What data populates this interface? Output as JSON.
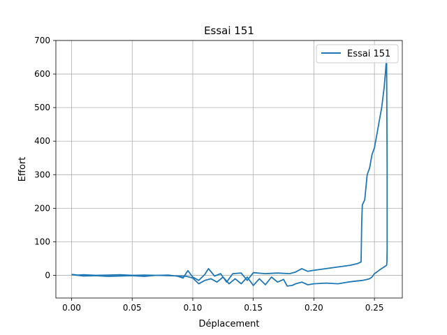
{
  "chart_data": {
    "type": "line",
    "title": "Essai 151",
    "xlabel": "Déplacement",
    "ylabel": "Effort",
    "xlim": [
      -0.013,
      0.273
    ],
    "ylim": [
      -67.5,
      700
    ],
    "xticks": [
      0.0,
      0.05,
      0.1,
      0.15,
      0.2,
      0.25
    ],
    "xtick_labels": [
      "0.00",
      "0.05",
      "0.10",
      "0.15",
      "0.20",
      "0.25"
    ],
    "yticks": [
      0,
      100,
      200,
      300,
      400,
      500,
      600,
      700
    ],
    "ytick_labels": [
      "0",
      "100",
      "200",
      "300",
      "400",
      "500",
      "600",
      "700"
    ],
    "grid": true,
    "legend_position": "top-right",
    "series": [
      {
        "name": "Essai 151",
        "color": "#1f77b4",
        "x": [
          0.0,
          0.005,
          0.01,
          0.02,
          0.03,
          0.04,
          0.05,
          0.06,
          0.07,
          0.08,
          0.088,
          0.092,
          0.096,
          0.1,
          0.105,
          0.11,
          0.113,
          0.118,
          0.123,
          0.128,
          0.133,
          0.14,
          0.145,
          0.15,
          0.16,
          0.17,
          0.18,
          0.185,
          0.19,
          0.195,
          0.2,
          0.21,
          0.22,
          0.23,
          0.236,
          0.239,
          0.2395,
          0.24,
          0.242,
          0.244,
          0.246,
          0.248,
          0.25,
          0.252,
          0.254,
          0.256,
          0.258,
          0.259,
          0.2595,
          0.26,
          0.2605,
          0.2605,
          0.2603,
          0.2602,
          0.26,
          0.258,
          0.255,
          0.252,
          0.25,
          0.248,
          0.246,
          0.243,
          0.24,
          0.235,
          0.228,
          0.22,
          0.21,
          0.2,
          0.195,
          0.19,
          0.185,
          0.182,
          0.178,
          0.175,
          0.17,
          0.165,
          0.16,
          0.155,
          0.15,
          0.145,
          0.14,
          0.135,
          0.13,
          0.125,
          0.12,
          0.115,
          0.11,
          0.105,
          0.1,
          0.095,
          0.09,
          0.08,
          0.07,
          0.06,
          0.05,
          0.04,
          0.03,
          0.02,
          0.01,
          0.005,
          0.0
        ],
        "y": [
          3,
          1,
          2,
          0,
          1,
          2,
          0,
          1,
          0,
          1,
          -3,
          -8,
          14,
          -5,
          -15,
          3,
          20,
          -2,
          5,
          -20,
          5,
          7,
          -15,
          8,
          5,
          7,
          5,
          10,
          20,
          12,
          15,
          20,
          25,
          30,
          35,
          40,
          160,
          210,
          225,
          300,
          320,
          360,
          380,
          420,
          460,
          500,
          560,
          600,
          625,
          650,
          320,
          80,
          40,
          35,
          30,
          25,
          18,
          10,
          5,
          -5,
          -10,
          -13,
          -15,
          -17,
          -20,
          -25,
          -23,
          -25,
          -28,
          -20,
          -25,
          -30,
          -32,
          -12,
          -20,
          -5,
          -28,
          -10,
          -30,
          -5,
          -25,
          -10,
          -25,
          -5,
          -20,
          -10,
          -15,
          -25,
          -8,
          -3,
          -2,
          -1,
          0,
          -3,
          -1,
          -2,
          -3,
          -1,
          -2,
          0,
          2
        ]
      }
    ]
  }
}
